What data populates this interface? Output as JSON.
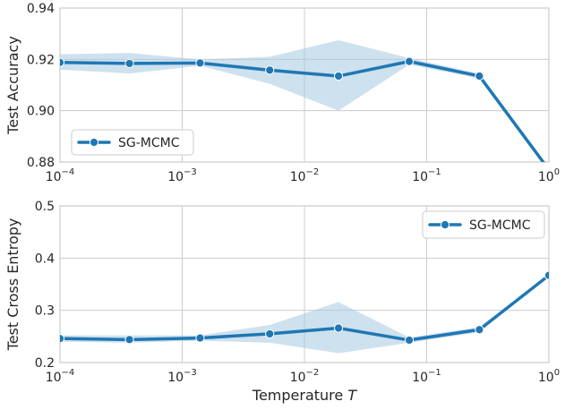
{
  "chart_data": [
    {
      "type": "line",
      "ylabel": "Test Accuracy",
      "xlabel": "",
      "x_scale": "log",
      "xlim": [
        0.0001,
        1
      ],
      "ylim": [
        0.88,
        0.94
      ],
      "x_ticks": [
        {
          "value": 0.0001,
          "base": "10",
          "exp": "−4"
        },
        {
          "value": 0.001,
          "base": "10",
          "exp": "−3"
        },
        {
          "value": 0.01,
          "base": "10",
          "exp": "−2"
        },
        {
          "value": 0.1,
          "base": "10",
          "exp": "−1"
        },
        {
          "value": 1,
          "base": "10",
          "exp": "0"
        }
      ],
      "y_ticks": [
        {
          "value": 0.88,
          "label": "0.88"
        },
        {
          "value": 0.9,
          "label": "0.90"
        },
        {
          "value": 0.92,
          "label": "0.92"
        },
        {
          "value": 0.94,
          "label": "0.94"
        }
      ],
      "grid": true,
      "legend_position": "lower-left",
      "series": [
        {
          "name": "SG-MCMC",
          "color": "#1f77b4",
          "band_color": "#a6c8e0",
          "x": [
            0.0001,
            0.00037,
            0.0014,
            0.0052,
            0.019,
            0.072,
            0.27,
            1.0
          ],
          "y": [
            0.9188,
            0.9184,
            0.9186,
            0.9158,
            0.9135,
            0.9192,
            0.9135,
            0.877
          ],
          "y_low": [
            0.916,
            0.9145,
            0.9175,
            0.9105,
            0.9,
            0.918,
            0.9125,
            0.877
          ],
          "y_high": [
            0.922,
            0.9225,
            0.92,
            0.921,
            0.9275,
            0.9205,
            0.9145,
            0.877
          ]
        }
      ]
    },
    {
      "type": "line",
      "ylabel": "Test Cross Entropy",
      "xlabel": "Temperature T",
      "xlabel_text": "Temperature ",
      "xlabel_italic": "T",
      "x_scale": "log",
      "xlim": [
        0.0001,
        1
      ],
      "ylim": [
        0.2,
        0.5
      ],
      "x_ticks": [
        {
          "value": 0.0001,
          "base": "10",
          "exp": "−4"
        },
        {
          "value": 0.001,
          "base": "10",
          "exp": "−3"
        },
        {
          "value": 0.01,
          "base": "10",
          "exp": "−2"
        },
        {
          "value": 0.1,
          "base": "10",
          "exp": "−1"
        },
        {
          "value": 1,
          "base": "10",
          "exp": "0"
        }
      ],
      "y_ticks": [
        {
          "value": 0.2,
          "label": "0.2"
        },
        {
          "value": 0.3,
          "label": "0.3"
        },
        {
          "value": 0.4,
          "label": "0.4"
        },
        {
          "value": 0.5,
          "label": "0.5"
        }
      ],
      "grid": true,
      "legend_position": "top-right",
      "series": [
        {
          "name": "SG-MCMC",
          "color": "#1f77b4",
          "band_color": "#a6c8e0",
          "x": [
            0.0001,
            0.00037,
            0.0014,
            0.0052,
            0.019,
            0.072,
            0.27,
            1.0
          ],
          "y": [
            0.246,
            0.244,
            0.247,
            0.255,
            0.266,
            0.243,
            0.263,
            0.367
          ],
          "y_low": [
            0.24,
            0.238,
            0.242,
            0.238,
            0.218,
            0.238,
            0.258,
            0.367
          ],
          "y_high": [
            0.252,
            0.252,
            0.252,
            0.272,
            0.316,
            0.248,
            0.268,
            0.367
          ]
        }
      ]
    }
  ]
}
